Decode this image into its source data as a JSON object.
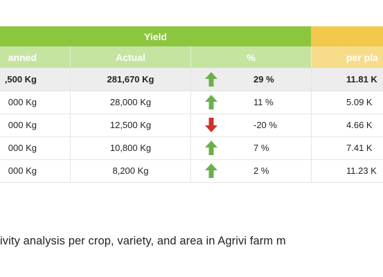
{
  "table": {
    "group_header": "Yield",
    "headers": [
      "Planned",
      "Actual",
      "%",
      "per plant"
    ],
    "header_visible": [
      "anned",
      "Actual",
      "%",
      "per pla"
    ],
    "rows": [
      {
        "planned": ",500 Kg",
        "actual": "281,670 Kg",
        "trend": "up",
        "percent": "29 %",
        "per_plant": "11.81 K",
        "total": true
      },
      {
        "planned": "000 Kg",
        "actual": "28,000 Kg",
        "trend": "up",
        "percent": "11 %",
        "per_plant": "5.09 K"
      },
      {
        "planned": "000 Kg",
        "actual": "12,500 Kg",
        "trend": "down",
        "percent": "-20 %",
        "per_plant": "4.66 K"
      },
      {
        "planned": "000 Kg",
        "actual": "10,800 Kg",
        "trend": "up",
        "percent": "7 %",
        "per_plant": "7.41 K"
      },
      {
        "planned": "000 Kg",
        "actual": "8,200 Kg",
        "trend": "up",
        "percent": "2 %",
        "per_plant": "11.23 K"
      }
    ]
  },
  "caption": "ivity analysis per crop, variety, and area in Agrivi farm m",
  "colors": {
    "header_green": "#8cc63f",
    "sub_green": "#c5e4a0",
    "header_yellow": "#f2c94c",
    "sub_yellow": "#f7dc8a",
    "up_arrow": "#6ab04c",
    "down_arrow": "#d0312d"
  }
}
